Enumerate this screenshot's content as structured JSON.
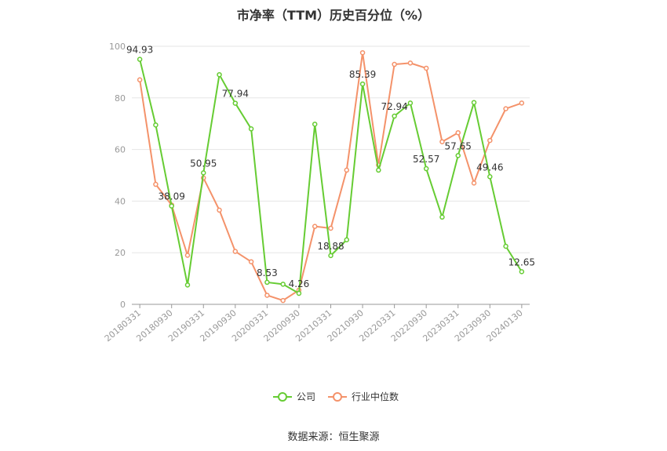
{
  "title": "市净率（TTM）历史百分位（%）",
  "source": "数据来源：恒生聚源",
  "chart_data": {
    "type": "line",
    "title": "市净率（TTM）历史百分位（%）",
    "xlabel": "",
    "ylabel": "",
    "ylim": [
      0,
      100
    ],
    "yticks": [
      0,
      20,
      40,
      60,
      80,
      100
    ],
    "grid": true,
    "legend_position": "bottom",
    "x_tick_labels": [
      "20180331",
      "20180930",
      "20190331",
      "20190930",
      "20200331",
      "20200930",
      "20210331",
      "20210930",
      "20220331",
      "20220930",
      "20230331",
      "20230930",
      "20240130"
    ],
    "series": [
      {
        "name": "公司",
        "color": "#66cc33",
        "values": [
          94.93,
          69.5,
          38.09,
          7.5,
          50.95,
          89.0,
          77.94,
          68.0,
          8.53,
          7.8,
          4.26,
          69.8,
          18.88,
          25.0,
          85.39,
          52.0,
          72.94,
          78.0,
          52.57,
          33.8,
          57.65,
          78.2,
          49.46,
          22.5,
          12.65
        ],
        "labels": [
          "94.93",
          "",
          "38.09",
          "",
          "50.95",
          "",
          "77.94",
          "",
          "8.53",
          "",
          "4.26",
          "",
          "18.88",
          "",
          "85.39",
          "",
          "72.94",
          "",
          "52.57",
          "",
          "57.65",
          "",
          "49.46",
          "",
          "12.65"
        ]
      },
      {
        "name": "行业中位数",
        "color": "#f4926a",
        "values": [
          87.0,
          46.5,
          38.5,
          19.0,
          49.0,
          36.5,
          20.5,
          16.5,
          3.5,
          1.5,
          5.5,
          30.2,
          29.5,
          52.0,
          97.5,
          54.0,
          93.0,
          93.5,
          91.5,
          63.0,
          66.5,
          47.0,
          63.5,
          75.8,
          78.0
        ]
      }
    ]
  }
}
